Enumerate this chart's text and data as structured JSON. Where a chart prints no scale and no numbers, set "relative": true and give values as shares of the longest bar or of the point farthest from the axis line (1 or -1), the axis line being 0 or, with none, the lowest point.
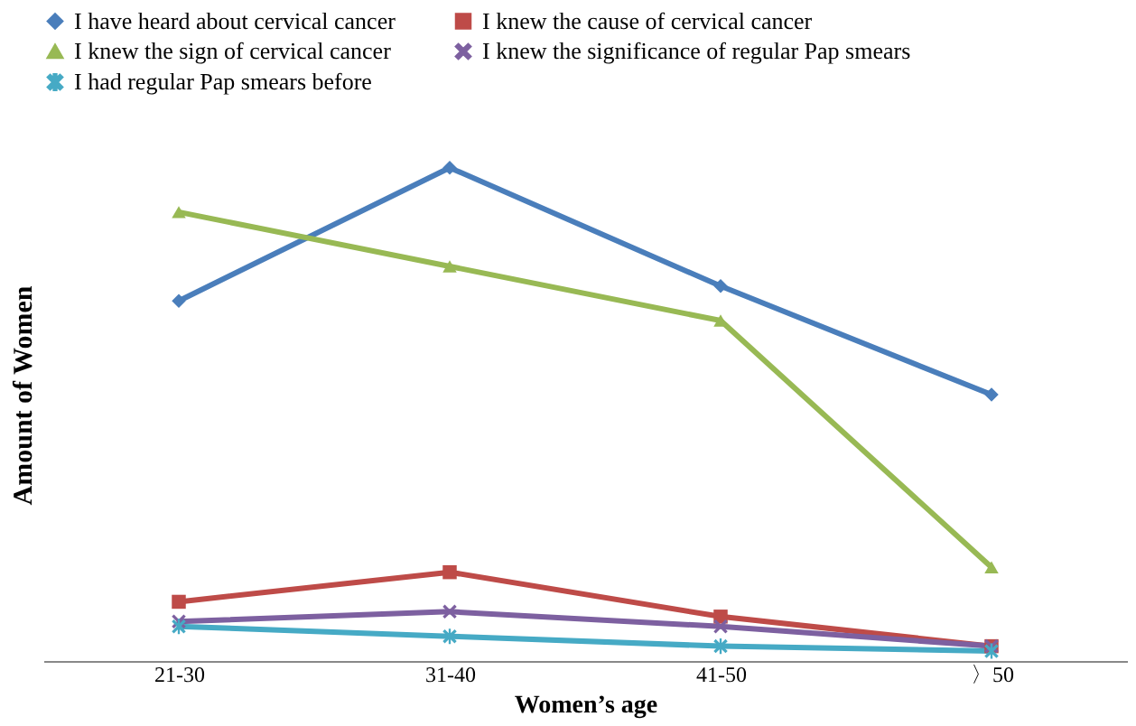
{
  "chart_data": {
    "type": "line",
    "relative": true,
    "xlabel": "Women’s age",
    "ylabel": "Amount of Women",
    "categories": [
      "21-30",
      "31-40",
      "41-50",
      "〉50"
    ],
    "legend": "top",
    "grid": false,
    "series": [
      {
        "name": "I have heard about cervical cancer",
        "color": "#4a7ebb",
        "marker": "diamond",
        "values": [
          0.73,
          1.0,
          0.76,
          0.54
        ]
      },
      {
        "name": "I knew the cause of cervical cancer",
        "color": "#be4b48",
        "marker": "square",
        "values": [
          0.12,
          0.18,
          0.09,
          0.03
        ]
      },
      {
        "name": "I knew the sign of cervical cancer",
        "color": "#98b954",
        "marker": "triangle",
        "values": [
          0.91,
          0.8,
          0.69,
          0.19
        ]
      },
      {
        "name": "I knew the significance of regular Pap smears",
        "color": "#7d60a0",
        "marker": "cross",
        "values": [
          0.08,
          0.1,
          0.07,
          0.03
        ]
      },
      {
        "name": "I had regular Pap smears before",
        "color": "#46aac5",
        "marker": "star",
        "values": [
          0.07,
          0.05,
          0.03,
          0.02
        ]
      }
    ]
  }
}
